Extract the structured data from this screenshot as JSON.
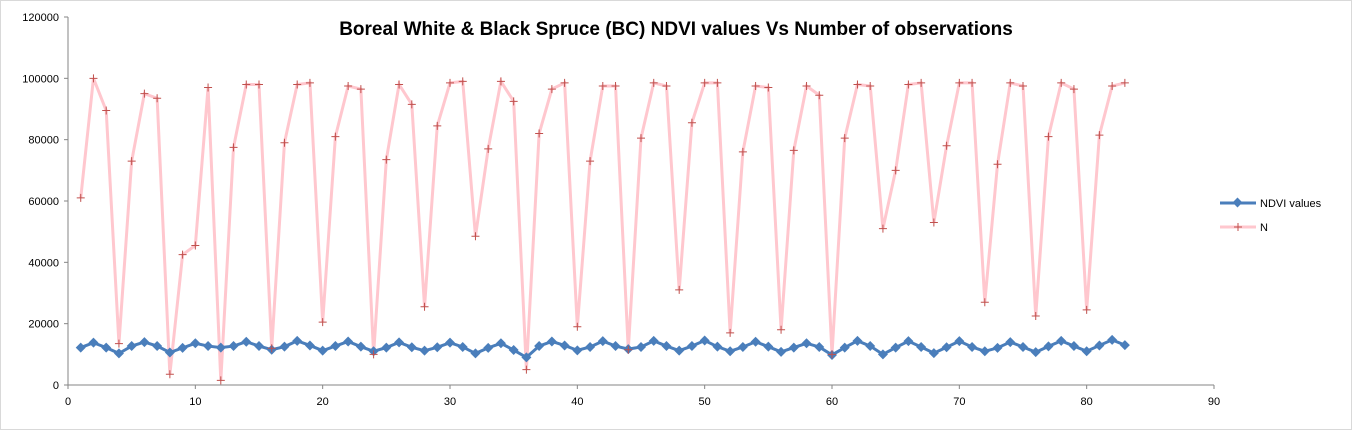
{
  "chart_data": {
    "type": "line",
    "title": "Boreal White & Black Spruce (BC) NDVI values Vs Number of observations",
    "xlabel": "",
    "ylabel": "",
    "xlim": [
      0,
      90
    ],
    "ylim": [
      0,
      120000
    ],
    "x_ticks": [
      "0",
      "10",
      "20",
      "30",
      "40",
      "50",
      "60",
      "70",
      "80",
      "90"
    ],
    "y_ticks": [
      "0",
      "20000",
      "40000",
      "60000",
      "80000",
      "100000",
      "120000"
    ],
    "grid": false,
    "legend": "right",
    "series": [
      {
        "name": "NDVI values",
        "color": "#4a7ebb",
        "marker": "diamond",
        "values": [
          12200,
          13800,
          12200,
          10300,
          12700,
          14000,
          12700,
          10600,
          12100,
          13600,
          12700,
          12200,
          12700,
          14100,
          12700,
          11500,
          12500,
          14400,
          12900,
          11200,
          12700,
          14200,
          12500,
          11000,
          12200,
          13900,
          12300,
          11200,
          12300,
          13800,
          12400,
          10300,
          12100,
          13600,
          11400,
          9000,
          12700,
          14200,
          12900,
          11300,
          12400,
          14300,
          12700,
          11700,
          12400,
          14400,
          12700,
          11200,
          12700,
          14500,
          12500,
          11000,
          12400,
          14100,
          12500,
          10800,
          12200,
          13600,
          12400,
          9800,
          12200,
          14400,
          12700,
          10000,
          12200,
          14300,
          12400,
          10400,
          12300,
          14300,
          12400,
          11000,
          12100,
          14000,
          12400,
          10700,
          12600,
          14400,
          12700,
          11000,
          12900,
          14700,
          13000
        ]
      },
      {
        "name": "N",
        "color": "#ffc7ce",
        "marker_color": "#c0504d",
        "marker": "plus",
        "values": [
          61000,
          100000,
          89500,
          13500,
          73000,
          95000,
          93500,
          3500,
          42500,
          45500,
          97000,
          1500,
          77500,
          98000,
          98000,
          12000,
          79000,
          98000,
          98500,
          20500,
          81000,
          97500,
          96500,
          10000,
          73500,
          98000,
          91500,
          25500,
          84500,
          98500,
          99000,
          48500,
          77000,
          99000,
          92500,
          5000,
          82000,
          96500,
          98500,
          19000,
          73000,
          97500,
          97500,
          11500,
          80500,
          98500,
          97500,
          31000,
          85500,
          98500,
          98500,
          17000,
          76000,
          97500,
          97000,
          18000,
          76500,
          97500,
          94500,
          10000,
          80500,
          98000,
          97500,
          51000,
          70000,
          98000,
          98500,
          53000,
          78000,
          98500,
          98500,
          27000,
          72000,
          98500,
          97500,
          22500,
          81000,
          98500,
          96500,
          24500,
          81500,
          97500,
          98500
        ]
      }
    ]
  }
}
